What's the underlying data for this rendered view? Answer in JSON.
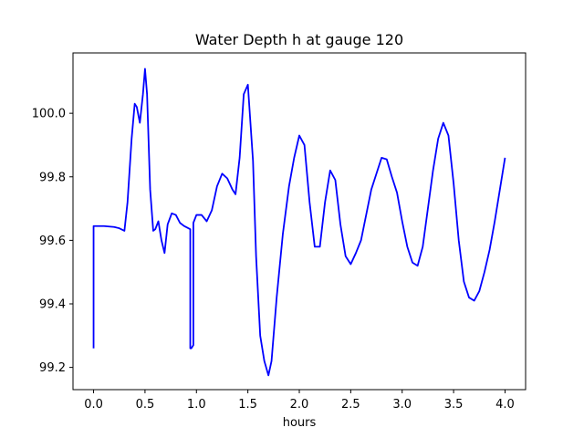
{
  "chart_data": {
    "type": "line",
    "title": "Water Depth h at gauge 120",
    "xlabel": "hours",
    "ylabel": "",
    "xlim": [
      -0.2,
      4.2
    ],
    "ylim": [
      99.13,
      100.19
    ],
    "xticks": [
      0.0,
      0.5,
      1.0,
      1.5,
      2.0,
      2.5,
      3.0,
      3.5,
      4.0
    ],
    "xtick_labels": [
      "0.0",
      "0.5",
      "1.0",
      "1.5",
      "2.0",
      "2.5",
      "3.0",
      "3.5",
      "4.0"
    ],
    "yticks": [
      99.2,
      99.4,
      99.6,
      99.8,
      100.0
    ],
    "ytick_labels": [
      "99.2",
      "99.4",
      "99.6",
      "99.8",
      "100.0"
    ],
    "grid": false,
    "series": [
      {
        "color": "#0000ff",
        "x": [
          0.0,
          0.0,
          0.1,
          0.2,
          0.25,
          0.3,
          0.33,
          0.37,
          0.4,
          0.42,
          0.45,
          0.48,
          0.5,
          0.52,
          0.55,
          0.58,
          0.6,
          0.63,
          0.66,
          0.69,
          0.72,
          0.76,
          0.8,
          0.84,
          0.88,
          0.91,
          0.94,
          0.94,
          0.95,
          0.97,
          0.97,
          1.0,
          1.05,
          1.1,
          1.15,
          1.2,
          1.25,
          1.3,
          1.35,
          1.38,
          1.42,
          1.46,
          1.5,
          1.55,
          1.58,
          1.62,
          1.66,
          1.7,
          1.73,
          1.78,
          1.84,
          1.9,
          1.95,
          2.0,
          2.05,
          2.1,
          2.15,
          2.2,
          2.25,
          2.3,
          2.35,
          2.4,
          2.45,
          2.5,
          2.55,
          2.6,
          2.65,
          2.7,
          2.75,
          2.8,
          2.85,
          2.9,
          2.95,
          3.0,
          3.05,
          3.1,
          3.15,
          3.2,
          3.25,
          3.3,
          3.35,
          3.4,
          3.45,
          3.5,
          3.55,
          3.6,
          3.65,
          3.7,
          3.75,
          3.8,
          3.85,
          3.9,
          3.95,
          4.0
        ],
        "y": [
          99.26,
          99.645,
          99.645,
          99.642,
          99.638,
          99.63,
          99.72,
          99.92,
          100.03,
          100.02,
          99.97,
          100.06,
          100.14,
          100.06,
          99.76,
          99.63,
          99.635,
          99.66,
          99.6,
          99.56,
          99.65,
          99.685,
          99.68,
          99.655,
          99.645,
          99.64,
          99.635,
          99.26,
          99.26,
          99.27,
          99.655,
          99.68,
          99.68,
          99.66,
          99.695,
          99.77,
          99.81,
          99.795,
          99.76,
          99.745,
          99.86,
          100.06,
          100.09,
          99.85,
          99.55,
          99.3,
          99.22,
          99.175,
          99.22,
          99.42,
          99.62,
          99.77,
          99.86,
          99.93,
          99.9,
          99.72,
          99.58,
          99.58,
          99.72,
          99.82,
          99.79,
          99.65,
          99.55,
          99.525,
          99.56,
          99.6,
          99.68,
          99.76,
          99.81,
          99.86,
          99.855,
          99.8,
          99.75,
          99.66,
          99.58,
          99.53,
          99.52,
          99.58,
          99.7,
          99.82,
          99.92,
          99.97,
          99.93,
          99.78,
          99.6,
          99.47,
          99.42,
          99.41,
          99.44,
          99.5,
          99.57,
          99.66,
          99.76,
          99.86
        ]
      }
    ]
  }
}
